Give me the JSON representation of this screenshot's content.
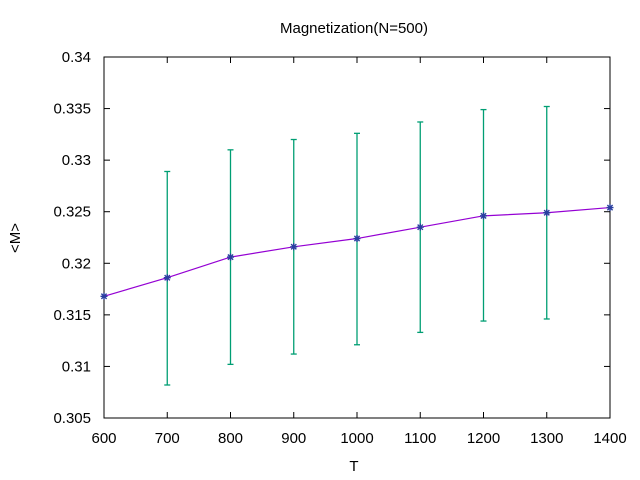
{
  "chart_data": {
    "type": "line",
    "title": "Magnetization(N=500)",
    "xlabel": "T",
    "ylabel": "<M>",
    "xlim": [
      600,
      1400
    ],
    "ylim": [
      0.305,
      0.34
    ],
    "x_ticks": [
      600,
      700,
      800,
      900,
      1000,
      1100,
      1200,
      1300,
      1400
    ],
    "y_ticks": [
      0.305,
      0.31,
      0.315,
      0.32,
      0.325,
      0.33,
      0.335,
      0.34
    ],
    "grid": false,
    "legend": "none",
    "series": [
      {
        "x": [
          600,
          700,
          800,
          900,
          1000,
          1100,
          1200,
          1300,
          1400
        ],
        "values": [
          0.3168,
          0.3186,
          0.3206,
          0.3216,
          0.3224,
          0.3235,
          0.3246,
          0.3249,
          0.3254
        ],
        "error_low": [
          null,
          0.3082,
          0.3102,
          0.3112,
          0.3121,
          0.3133,
          0.3144,
          0.3146,
          null
        ],
        "error_high": [
          null,
          0.3289,
          0.331,
          0.332,
          0.3326,
          0.3337,
          0.3349,
          0.3352,
          null
        ],
        "line_color": "#9400d3",
        "marker_color": "#2a3fa0",
        "error_color": "#009e73"
      }
    ]
  }
}
